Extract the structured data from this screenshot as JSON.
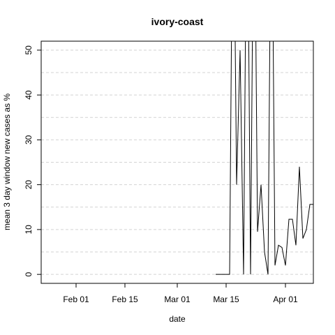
{
  "chart_data": {
    "type": "line",
    "title": "ivory-coast",
    "xlabel": "date",
    "ylabel": "mean  3  day window new cases as %",
    "x_ticks": [
      "Feb 01",
      "Feb 15",
      "Mar 01",
      "Mar 15",
      "Apr 01"
    ],
    "x_tick_dates": [
      "2020-02-01",
      "2020-02-15",
      "2020-03-01",
      "2020-03-15",
      "2020-04-01"
    ],
    "y_ticks": [
      0,
      10,
      20,
      30,
      40,
      50
    ],
    "xlim": [
      "2020-01-22",
      "2020-04-09"
    ],
    "ylim": [
      -2,
      52
    ],
    "grid": true,
    "grid_style": "dashed-light-gray",
    "line_color": "#000000",
    "series": [
      {
        "x": [
          "2020-03-12",
          "2020-03-13",
          "2020-03-14",
          "2020-03-15",
          "2020-03-16",
          "2020-03-17",
          "2020-03-18",
          "2020-03-19",
          "2020-03-20",
          "2020-03-21",
          "2020-03-22",
          "2020-03-23",
          "2020-03-24",
          "2020-03-25",
          "2020-03-26",
          "2020-03-27",
          "2020-03-28",
          "2020-03-29",
          "2020-03-30",
          "2020-03-31",
          "2020-04-01",
          "2020-04-02",
          "2020-04-03",
          "2020-04-04",
          "2020-04-05",
          "2020-04-06",
          "2020-04-07",
          "2020-04-08",
          "2020-04-09"
        ],
        "y": [
          0,
          0,
          0,
          0,
          0,
          100,
          20,
          50,
          0,
          100,
          0,
          100,
          9.5,
          20,
          5,
          0,
          100,
          2,
          6.5,
          6,
          2,
          12.3,
          12.3,
          6.5,
          24,
          8,
          10,
          15.6,
          15.6
        ]
      }
    ]
  }
}
